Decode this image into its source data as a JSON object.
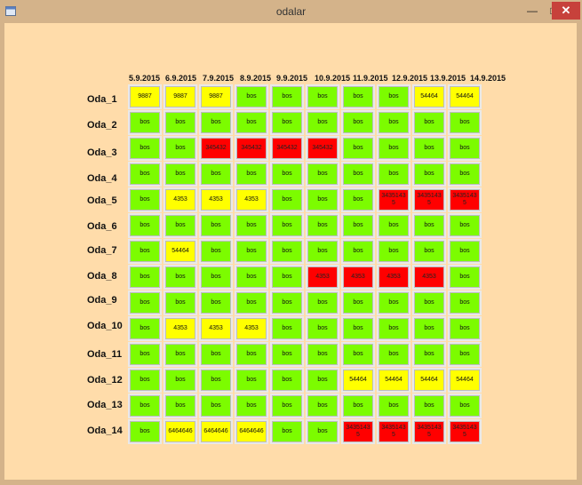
{
  "window": {
    "title": "odalar"
  },
  "dates": [
    "5.9.2015",
    "6.9.2015",
    "7.9.2015",
    "8.9.2015",
    "9.9.2015",
    "10.9.2015",
    "11.9.2015",
    "12.9.2015",
    "13.9.2015",
    "14.9.2015"
  ],
  "colors": {
    "bos": "#7cfc00",
    "yel": "#ffff00",
    "red": "#ff0000"
  },
  "rooms": [
    {
      "name": "Oda_1",
      "cells": [
        [
          "9887",
          "yel"
        ],
        [
          "9887",
          "yel"
        ],
        [
          "9887",
          "yel"
        ],
        [
          "bos",
          "bos"
        ],
        [
          "bos",
          "bos"
        ],
        [
          "bos",
          "bos"
        ],
        [
          "bos",
          "bos"
        ],
        [
          "bos",
          "bos"
        ],
        [
          "54464",
          "yel"
        ],
        [
          "54464",
          "yel"
        ]
      ]
    },
    {
      "name": "Oda_2",
      "cells": [
        [
          "bos",
          "bos"
        ],
        [
          "bos",
          "bos"
        ],
        [
          "bos",
          "bos"
        ],
        [
          "bos",
          "bos"
        ],
        [
          "bos",
          "bos"
        ],
        [
          "bos",
          "bos"
        ],
        [
          "bos",
          "bos"
        ],
        [
          "bos",
          "bos"
        ],
        [
          "bos",
          "bos"
        ],
        [
          "bos",
          "bos"
        ]
      ]
    },
    {
      "name": "Oda_3",
      "cells": [
        [
          "bos",
          "bos"
        ],
        [
          "bos",
          "bos"
        ],
        [
          "345432",
          "red"
        ],
        [
          "345432",
          "red"
        ],
        [
          "345432",
          "red"
        ],
        [
          "345432",
          "red"
        ],
        [
          "bos",
          "bos"
        ],
        [
          "bos",
          "bos"
        ],
        [
          "bos",
          "bos"
        ],
        [
          "bos",
          "bos"
        ]
      ]
    },
    {
      "name": "Oda_4",
      "cells": [
        [
          "bos",
          "bos"
        ],
        [
          "bos",
          "bos"
        ],
        [
          "bos",
          "bos"
        ],
        [
          "bos",
          "bos"
        ],
        [
          "bos",
          "bos"
        ],
        [
          "bos",
          "bos"
        ],
        [
          "bos",
          "bos"
        ],
        [
          "bos",
          "bos"
        ],
        [
          "bos",
          "bos"
        ],
        [
          "bos",
          "bos"
        ]
      ]
    },
    {
      "name": "Oda_5",
      "cells": [
        [
          "bos",
          "bos"
        ],
        [
          "4353",
          "yel"
        ],
        [
          "4353",
          "yel"
        ],
        [
          "4353",
          "yel"
        ],
        [
          "bos",
          "bos"
        ],
        [
          "bos",
          "bos"
        ],
        [
          "bos",
          "bos"
        ],
        [
          "3435143 5",
          "red"
        ],
        [
          "3435143 5",
          "red"
        ],
        [
          "3435143 5",
          "red"
        ]
      ]
    },
    {
      "name": "Oda_6",
      "cells": [
        [
          "bos",
          "bos"
        ],
        [
          "bos",
          "bos"
        ],
        [
          "bos",
          "bos"
        ],
        [
          "bos",
          "bos"
        ],
        [
          "bos",
          "bos"
        ],
        [
          "bos",
          "bos"
        ],
        [
          "bos",
          "bos"
        ],
        [
          "bos",
          "bos"
        ],
        [
          "bos",
          "bos"
        ],
        [
          "bos",
          "bos"
        ]
      ]
    },
    {
      "name": "Oda_7",
      "cells": [
        [
          "bos",
          "bos"
        ],
        [
          "54464",
          "yel"
        ],
        [
          "bos",
          "bos"
        ],
        [
          "bos",
          "bos"
        ],
        [
          "bos",
          "bos"
        ],
        [
          "bos",
          "bos"
        ],
        [
          "bos",
          "bos"
        ],
        [
          "bos",
          "bos"
        ],
        [
          "bos",
          "bos"
        ],
        [
          "bos",
          "bos"
        ]
      ]
    },
    {
      "name": "Oda_8",
      "cells": [
        [
          "bos",
          "bos"
        ],
        [
          "bos",
          "bos"
        ],
        [
          "bos",
          "bos"
        ],
        [
          "bos",
          "bos"
        ],
        [
          "bos",
          "bos"
        ],
        [
          "4353",
          "red"
        ],
        [
          "4353",
          "red"
        ],
        [
          "4353",
          "red"
        ],
        [
          "4353",
          "red"
        ],
        [
          "bos",
          "bos"
        ]
      ]
    },
    {
      "name": "Oda_9",
      "cells": [
        [
          "bos",
          "bos"
        ],
        [
          "bos",
          "bos"
        ],
        [
          "bos",
          "bos"
        ],
        [
          "bos",
          "bos"
        ],
        [
          "bos",
          "bos"
        ],
        [
          "bos",
          "bos"
        ],
        [
          "bos",
          "bos"
        ],
        [
          "bos",
          "bos"
        ],
        [
          "bos",
          "bos"
        ],
        [
          "bos",
          "bos"
        ]
      ]
    },
    {
      "name": "Oda_10",
      "cells": [
        [
          "bos",
          "bos"
        ],
        [
          "4353",
          "yel"
        ],
        [
          "4353",
          "yel"
        ],
        [
          "4353",
          "yel"
        ],
        [
          "bos",
          "bos"
        ],
        [
          "bos",
          "bos"
        ],
        [
          "bos",
          "bos"
        ],
        [
          "bos",
          "bos"
        ],
        [
          "bos",
          "bos"
        ],
        [
          "bos",
          "bos"
        ]
      ]
    },
    {
      "name": "Oda_11",
      "cells": [
        [
          "bos",
          "bos"
        ],
        [
          "bos",
          "bos"
        ],
        [
          "bos",
          "bos"
        ],
        [
          "bos",
          "bos"
        ],
        [
          "bos",
          "bos"
        ],
        [
          "bos",
          "bos"
        ],
        [
          "bos",
          "bos"
        ],
        [
          "bos",
          "bos"
        ],
        [
          "bos",
          "bos"
        ],
        [
          "bos",
          "bos"
        ]
      ]
    },
    {
      "name": "Oda_12",
      "cells": [
        [
          "bos",
          "bos"
        ],
        [
          "bos",
          "bos"
        ],
        [
          "bos",
          "bos"
        ],
        [
          "bos",
          "bos"
        ],
        [
          "bos",
          "bos"
        ],
        [
          "bos",
          "bos"
        ],
        [
          "54464",
          "yel"
        ],
        [
          "54464",
          "yel"
        ],
        [
          "54464",
          "yel"
        ],
        [
          "54464",
          "yel"
        ]
      ]
    },
    {
      "name": "Oda_13",
      "cells": [
        [
          "bos",
          "bos"
        ],
        [
          "bos",
          "bos"
        ],
        [
          "bos",
          "bos"
        ],
        [
          "bos",
          "bos"
        ],
        [
          "bos",
          "bos"
        ],
        [
          "bos",
          "bos"
        ],
        [
          "bos",
          "bos"
        ],
        [
          "bos",
          "bos"
        ],
        [
          "bos",
          "bos"
        ],
        [
          "bos",
          "bos"
        ]
      ]
    },
    {
      "name": "Oda_14",
      "cells": [
        [
          "bos",
          "bos"
        ],
        [
          "6464646",
          "yel"
        ],
        [
          "6464646",
          "yel"
        ],
        [
          "6464646",
          "yel"
        ],
        [
          "bos",
          "bos"
        ],
        [
          "bos",
          "bos"
        ],
        [
          "3435143 5",
          "red"
        ],
        [
          "3435143 5",
          "red"
        ],
        [
          "3435143 5",
          "red"
        ],
        [
          "3435143 5",
          "red"
        ]
      ]
    }
  ]
}
